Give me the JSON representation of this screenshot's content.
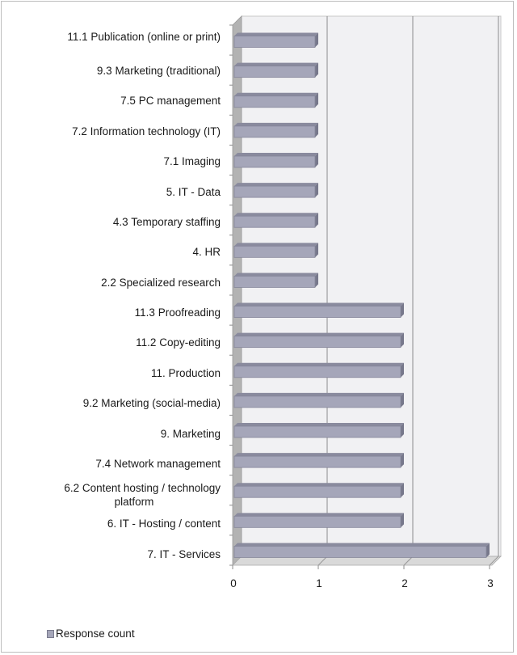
{
  "chart_data": {
    "type": "bar",
    "orientation": "horizontal",
    "style": "3d-clustered-bar",
    "title": "",
    "xlabel": "",
    "ylabel": "",
    "xlim": [
      0,
      3
    ],
    "x_ticks": [
      "0",
      "1",
      "2",
      "3"
    ],
    "grid": true,
    "legend_position": "bottom-left",
    "categories": [
      "11.1 Publication (online or print)",
      "9.3 Marketing (traditional)",
      "7.5 PC management",
      "7.2 Information technology (IT)",
      "7.1 Imaging",
      "5. IT - Data",
      "4.3 Temporary staffing",
      "4. HR",
      "2.2 Specialized research",
      "11.3 Proofreading",
      "11.2 Copy-editing",
      "11. Production",
      "9.2 Marketing (social-media)",
      "9. Marketing",
      "7.4 Network management",
      "6.2 Content hosting / technology platform",
      "6. IT - Hosting / content",
      "7. IT - Services"
    ],
    "series": [
      {
        "name": "Response count",
        "color": "#a5a6b9",
        "values": [
          1,
          1,
          1,
          1,
          1,
          1,
          1,
          1,
          1,
          2,
          2,
          2,
          2,
          2,
          2,
          2,
          2,
          3
        ]
      }
    ]
  },
  "labels": {
    "cat_0": "11.1 Publication (online or print)",
    "cat_1": "9.3 Marketing (traditional)",
    "cat_2": "7.5 PC management",
    "cat_3": "7.2 Information technology (IT)",
    "cat_4": "7.1 Imaging",
    "cat_5": "5. IT - Data",
    "cat_6": "4.3 Temporary staffing",
    "cat_7": "4. HR",
    "cat_8": "2.2 Specialized research",
    "cat_9": "11.3 Proofreading",
    "cat_10": "11.2 Copy-editing",
    "cat_11": "11. Production",
    "cat_12": "9.2 Marketing (social-media)",
    "cat_13": "9. Marketing",
    "cat_14": "7.4 Network management",
    "cat_15a": "6.2 Content hosting / technology",
    "cat_15b": "platform",
    "cat_16": "6. IT - Hosting / content",
    "cat_17": "7. IT - Services",
    "tick_0": "0",
    "tick_1": "1",
    "tick_2": "2",
    "tick_3": "3",
    "legend_0": "Response count"
  },
  "colors": {
    "bar_front": "#a5a6b9",
    "bar_top": "#8a8b9e",
    "bar_side": "#77788b",
    "back_wall": "#f1f1f3",
    "side_wall": "#b3b3b3",
    "floor": "#d6d6d6",
    "gridline": "#8c8c8c"
  }
}
